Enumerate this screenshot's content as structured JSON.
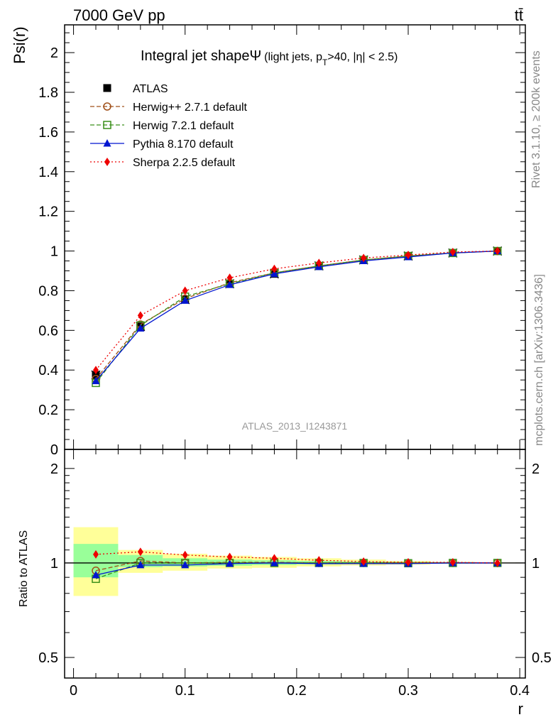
{
  "header": {
    "left_label": "7000 GeV pp",
    "right_label": "tt̄"
  },
  "side": {
    "rivet_label": "Rivet 3.1.10, ≥ 200k events",
    "mcplots_label": "mcplots.cern.ch [arXiv:1306.3436]"
  },
  "chart_data": [
    {
      "type": "line",
      "title": "Integral jet shape",
      "title_symbol": "Ψ",
      "subtitle_pre": "(light jets, p",
      "subtitle_sub": "T",
      "subtitle_post": ">40, |η| < 2.5)",
      "ylabel": "Psi(r)",
      "analysis_label": "ATLAS_2013_I1243871",
      "xlim": [
        -0.008,
        0.405
      ],
      "ylim": [
        0,
        2.14
      ],
      "y_tick_labels": [
        "0",
        "0.2",
        "0.4",
        "0.6",
        "0.8",
        "1",
        "1.2",
        "1.4",
        "1.6",
        "1.8",
        "2"
      ],
      "x": [
        0.02,
        0.06,
        0.1,
        0.14,
        0.18,
        0.22,
        0.26,
        0.3,
        0.34,
        0.38
      ],
      "series": [
        {
          "name": "ATLAS",
          "color": "#000000",
          "marker": "square-filled",
          "values": [
            0.375,
            0.62,
            0.755,
            0.835,
            0.885,
            0.925,
            0.955,
            0.975,
            0.99,
            1.0
          ]
        },
        {
          "name": "Herwig++ 2.7.1 default",
          "color": "#a0501a",
          "marker": "circle-open",
          "line": "dashed",
          "values": [
            0.355,
            0.63,
            0.76,
            0.84,
            0.89,
            0.925,
            0.955,
            0.975,
            0.99,
            1.0
          ]
        },
        {
          "name": "Herwig 7.2.1 default",
          "color": "#3a8f1a",
          "marker": "square-open",
          "line": "dashed",
          "values": [
            0.335,
            0.625,
            0.77,
            0.835,
            0.89,
            0.925,
            0.955,
            0.975,
            0.99,
            1.0
          ]
        },
        {
          "name": "Pythia 8.170 default",
          "color": "#0015d0",
          "marker": "triangle-filled",
          "line": "solid",
          "values": [
            0.345,
            0.61,
            0.75,
            0.83,
            0.885,
            0.92,
            0.95,
            0.97,
            0.99,
            1.0
          ]
        },
        {
          "name": "Sherpa 2.2.5 default",
          "color": "#ee0000",
          "marker": "diamond-filled",
          "line": "dotted",
          "values": [
            0.4,
            0.675,
            0.8,
            0.865,
            0.91,
            0.94,
            0.965,
            0.98,
            0.995,
            1.0
          ]
        }
      ]
    },
    {
      "type": "line",
      "ylabel": "Ratio to ATLAS",
      "xlabel": "r",
      "xlim": [
        -0.008,
        0.405
      ],
      "ylim": [
        0.43,
        2.3
      ],
      "y_scale": "log",
      "y_tick_labels": [
        "0.5",
        "1",
        "2"
      ],
      "x_tick_labels": [
        "0",
        "0.1",
        "0.2",
        "0.3",
        "0.4"
      ],
      "bands": [
        {
          "x": [
            0.0,
            0.04
          ],
          "yellow": [
            0.785,
            1.3
          ],
          "green": [
            0.9,
            1.15
          ]
        },
        {
          "x": [
            0.04,
            0.08
          ],
          "yellow": [
            0.93,
            1.1
          ],
          "green": [
            0.97,
            1.06
          ]
        },
        {
          "x": [
            0.08,
            0.12
          ],
          "yellow": [
            0.945,
            1.07
          ],
          "green": [
            0.975,
            1.035
          ]
        },
        {
          "x": [
            0.12,
            0.16
          ],
          "yellow": [
            0.96,
            1.055
          ],
          "green": [
            0.98,
            1.025
          ]
        },
        {
          "x": [
            0.16,
            0.2
          ],
          "yellow": [
            0.965,
            1.045
          ],
          "green": [
            0.985,
            1.02
          ]
        },
        {
          "x": [
            0.2,
            0.24
          ],
          "yellow": [
            0.975,
            1.035
          ],
          "green": [
            0.99,
            1.015
          ]
        },
        {
          "x": [
            0.24,
            0.28
          ],
          "yellow": [
            0.982,
            1.025
          ],
          "green": [
            0.993,
            1.01
          ]
        },
        {
          "x": [
            0.28,
            0.32
          ],
          "yellow": [
            0.988,
            1.015
          ],
          "green": [
            0.995,
            1.008
          ]
        },
        {
          "x": [
            0.32,
            0.36
          ],
          "yellow": [
            0.994,
            1.008
          ],
          "green": [
            0.998,
            1.004
          ]
        },
        {
          "x": [
            0.36,
            0.4
          ],
          "yellow": [
            0.998,
            1.003
          ],
          "green": [
            0.999,
            1.001
          ]
        }
      ],
      "x": [
        0.02,
        0.06,
        0.1,
        0.14,
        0.18,
        0.22,
        0.26,
        0.3,
        0.34,
        0.38
      ],
      "series": [
        {
          "name": "Herwig++ 2.7.1 default",
          "color": "#a0501a",
          "marker": "circle-open",
          "line": "dashed",
          "values": [
            0.945,
            1.015,
            1.0,
            1.005,
            1.005,
            1.0,
            1.0,
            1.0,
            1.0,
            1.0
          ]
        },
        {
          "name": "Herwig 7.2.1 default",
          "color": "#3a8f1a",
          "marker": "square-open",
          "line": "dashed",
          "values": [
            0.89,
            1.0,
            1.0,
            1.0,
            1.0,
            1.0,
            1.0,
            0.998,
            1.0,
            1.0
          ]
        },
        {
          "name": "Pythia 8.170 default",
          "color": "#0015d0",
          "marker": "triangle-filled",
          "line": "solid",
          "values": [
            0.915,
            0.985,
            0.985,
            0.995,
            1.0,
            0.995,
            0.995,
            0.995,
            1.0,
            1.0
          ]
        },
        {
          "name": "Sherpa 2.2.5 default",
          "color": "#ee0000",
          "marker": "diamond-filled",
          "line": "dotted",
          "values": [
            1.065,
            1.085,
            1.06,
            1.045,
            1.035,
            1.02,
            1.01,
            1.005,
            1.005,
            1.0
          ]
        }
      ]
    }
  ]
}
